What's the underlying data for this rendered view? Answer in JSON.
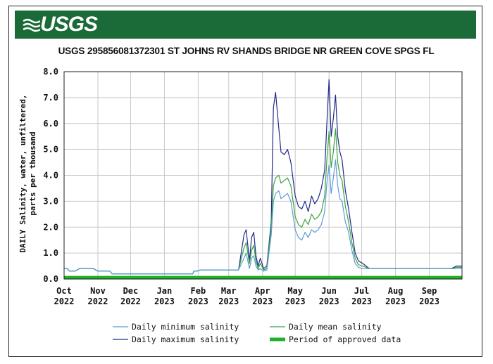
{
  "logo_text": "USGS",
  "colors": {
    "banner": "#1a6b37",
    "min_series": "#5b9bd5",
    "max_series": "#1f2a8c",
    "mean_series": "#3aa33a",
    "approved": "#21b02a"
  },
  "chart_data": {
    "type": "line",
    "title": "USGS 295856081372301 ST JOHNS RV SHANDS BRIDGE NR GREEN COVE SPGS FL",
    "ylabel_line1": "DAILY Salinity, water, unfiltered,",
    "ylabel_line2": "parts per thousand",
    "ylim": [
      0,
      8
    ],
    "yticks": [
      "0.0",
      "1.0",
      "2.0",
      "3.0",
      "4.0",
      "5.0",
      "6.0",
      "7.0",
      "8.0"
    ],
    "x_range_days": [
      0,
      365
    ],
    "xticks": [
      {
        "day": 0,
        "month": "Oct",
        "year": "2022"
      },
      {
        "day": 31,
        "month": "Nov",
        "year": "2022"
      },
      {
        "day": 61,
        "month": "Dec",
        "year": "2022"
      },
      {
        "day": 92,
        "month": "Jan",
        "year": "2023"
      },
      {
        "day": 123,
        "month": "Feb",
        "year": "2023"
      },
      {
        "day": 151,
        "month": "Mar",
        "year": "2023"
      },
      {
        "day": 182,
        "month": "Apr",
        "year": "2023"
      },
      {
        "day": 212,
        "month": "May",
        "year": "2023"
      },
      {
        "day": 243,
        "month": "Jun",
        "year": "2023"
      },
      {
        "day": 273,
        "month": "Jul",
        "year": "2023"
      },
      {
        "day": 304,
        "month": "Aug",
        "year": "2023"
      },
      {
        "day": 335,
        "month": "Sep",
        "year": "2023"
      }
    ],
    "grid": true,
    "legend": {
      "min": "Daily minimum salinity",
      "mean": "Daily mean salinity",
      "max": "Daily maximum salinity",
      "approved": "Period of approved data"
    },
    "series": [
      {
        "name": "Daily maximum salinity",
        "x": [
          0,
          3,
          5,
          10,
          14,
          18,
          23,
          27,
          31,
          35,
          38,
          42,
          44,
          46,
          60,
          90,
          118,
          119,
          120,
          122,
          125,
          160,
          165,
          167,
          170,
          172,
          174,
          176,
          178,
          180,
          183,
          186,
          190,
          192,
          194,
          197,
          199,
          202,
          205,
          208,
          212,
          215,
          218,
          221,
          224,
          227,
          230,
          233,
          236,
          239,
          241,
          243,
          245,
          247,
          249,
          251,
          253,
          255,
          258,
          261,
          264,
          267,
          270,
          274,
          280,
          290,
          320,
          355,
          360,
          365
        ],
        "y": [
          0.4,
          0.4,
          0.3,
          0.3,
          0.4,
          0.4,
          0.4,
          0.4,
          0.3,
          0.3,
          0.3,
          0.3,
          0.2,
          0.2,
          0.2,
          0.2,
          0.2,
          0.3,
          0.3,
          0.3,
          0.35,
          0.35,
          1.7,
          1.9,
          0.7,
          1.6,
          1.8,
          0.9,
          0.5,
          0.8,
          0.4,
          0.5,
          2.2,
          6.6,
          7.2,
          5.8,
          4.9,
          4.8,
          5.0,
          4.5,
          3.2,
          2.8,
          2.7,
          3.0,
          2.6,
          3.2,
          2.9,
          3.1,
          3.5,
          4.2,
          6.0,
          7.7,
          5.5,
          6.2,
          7.1,
          5.5,
          4.9,
          4.6,
          3.4,
          2.7,
          1.8,
          1.0,
          0.7,
          0.6,
          0.4,
          0.4,
          0.4,
          0.4,
          0.5,
          0.5
        ]
      },
      {
        "name": "Daily mean salinity",
        "x": [
          0,
          3,
          5,
          10,
          14,
          18,
          23,
          27,
          31,
          35,
          38,
          42,
          44,
          46,
          60,
          90,
          118,
          119,
          120,
          122,
          125,
          160,
          165,
          167,
          170,
          172,
          174,
          176,
          178,
          180,
          183,
          186,
          190,
          192,
          194,
          197,
          199,
          202,
          205,
          208,
          212,
          215,
          218,
          221,
          224,
          227,
          230,
          233,
          236,
          239,
          241,
          243,
          245,
          247,
          249,
          251,
          253,
          255,
          258,
          261,
          264,
          267,
          270,
          274,
          280,
          290,
          320,
          355,
          360,
          365
        ],
        "y": [
          0.4,
          0.4,
          0.3,
          0.3,
          0.4,
          0.4,
          0.4,
          0.4,
          0.3,
          0.3,
          0.3,
          0.3,
          0.2,
          0.2,
          0.2,
          0.2,
          0.2,
          0.3,
          0.3,
          0.3,
          0.35,
          0.35,
          1.2,
          1.4,
          0.6,
          1.1,
          1.3,
          0.7,
          0.4,
          0.6,
          0.35,
          0.4,
          2.0,
          3.6,
          3.9,
          4.0,
          3.7,
          3.8,
          3.9,
          3.6,
          2.4,
          2.1,
          2.0,
          2.3,
          2.1,
          2.5,
          2.3,
          2.4,
          2.6,
          3.2,
          4.6,
          5.7,
          4.3,
          4.9,
          5.8,
          4.5,
          4.0,
          3.8,
          2.8,
          2.2,
          1.4,
          0.8,
          0.55,
          0.5,
          0.4,
          0.4,
          0.4,
          0.4,
          0.45,
          0.45
        ]
      },
      {
        "name": "Daily minimum salinity",
        "x": [
          0,
          3,
          5,
          10,
          14,
          18,
          23,
          27,
          31,
          35,
          38,
          42,
          44,
          46,
          60,
          90,
          118,
          119,
          120,
          122,
          125,
          160,
          165,
          167,
          170,
          172,
          174,
          176,
          178,
          180,
          183,
          186,
          190,
          192,
          194,
          197,
          199,
          202,
          205,
          208,
          212,
          215,
          218,
          221,
          224,
          227,
          230,
          233,
          236,
          239,
          241,
          243,
          245,
          247,
          249,
          251,
          253,
          255,
          258,
          261,
          264,
          267,
          270,
          274,
          280,
          290,
          320,
          355,
          360,
          365
        ],
        "y": [
          0.4,
          0.4,
          0.3,
          0.3,
          0.4,
          0.4,
          0.4,
          0.4,
          0.3,
          0.3,
          0.3,
          0.3,
          0.2,
          0.2,
          0.2,
          0.2,
          0.2,
          0.3,
          0.3,
          0.3,
          0.35,
          0.35,
          0.8,
          1.0,
          0.4,
          0.8,
          0.9,
          0.5,
          0.35,
          0.4,
          0.3,
          0.35,
          1.7,
          3.0,
          3.3,
          3.4,
          3.1,
          3.2,
          3.3,
          3.0,
          1.9,
          1.6,
          1.5,
          1.8,
          1.6,
          1.9,
          1.8,
          1.9,
          2.1,
          2.6,
          3.7,
          4.4,
          3.3,
          3.9,
          4.6,
          3.6,
          3.1,
          3.0,
          2.2,
          1.8,
          1.1,
          0.6,
          0.45,
          0.4,
          0.4,
          0.4,
          0.4,
          0.4,
          0.4,
          0.4
        ]
      }
    ],
    "approved_period": {
      "from_day": 0,
      "to_day": 365,
      "value": 0.05
    }
  }
}
